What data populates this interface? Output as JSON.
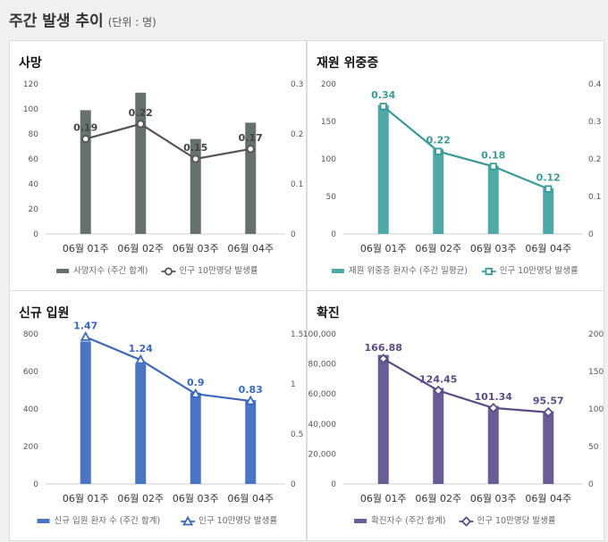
{
  "header": {
    "title": "주간 발생 추이",
    "unit": "(단위 : 명)"
  },
  "chart_data": [
    {
      "id": "death",
      "type": "bar",
      "title": "사망",
      "categories": [
        "06월 01주",
        "06월 02주",
        "06월 03주",
        "06월 04주"
      ],
      "color": "#66706d",
      "line_color": "#555555",
      "marker": "circle",
      "ylim_left": [
        0,
        120
      ],
      "yticks_left": [
        "0",
        "20",
        "40",
        "60",
        "80",
        "100",
        "120"
      ],
      "ylim_right": [
        0,
        0.3
      ],
      "yticks_right": [
        "0",
        "0.1",
        "0.2",
        "0.3"
      ],
      "series": [
        {
          "name": "사망자수 (주간 합계)",
          "kind": "bar",
          "axis": "left",
          "values": [
            99,
            113,
            76,
            89
          ]
        },
        {
          "name": "인구 10만명당 발생률",
          "kind": "line",
          "axis": "right",
          "values": [
            0.19,
            0.22,
            0.15,
            0.17
          ],
          "labels": [
            "0.19",
            "0.22",
            "0.15",
            "0.17"
          ]
        }
      ]
    },
    {
      "id": "severe",
      "type": "bar",
      "title": "재원 위중증",
      "categories": [
        "06월 01주",
        "06월 02주",
        "06월 03주",
        "06월 04주"
      ],
      "color": "#4fa9a6",
      "line_color": "#3a9a97",
      "marker": "square",
      "ylim_left": [
        0,
        200
      ],
      "yticks_left": [
        "0",
        "50",
        "100",
        "150",
        "200"
      ],
      "ylim_right": [
        0,
        0.4
      ],
      "yticks_right": [
        "0",
        "0.1",
        "0.2",
        "0.3",
        "0.4"
      ],
      "series": [
        {
          "name": "재원 위중증 환자수 (주간 일평균)",
          "kind": "bar",
          "axis": "left",
          "values": [
            172,
            113,
            91,
            61
          ]
        },
        {
          "name": "인구 10만명당 발생률",
          "kind": "line",
          "axis": "right",
          "values": [
            0.34,
            0.22,
            0.18,
            0.12
          ],
          "labels": [
            "0.34",
            "0.22",
            "0.18",
            "0.12"
          ]
        }
      ]
    },
    {
      "id": "admission",
      "type": "bar",
      "title": "신규 입원",
      "categories": [
        "06월 01주",
        "06월 02주",
        "06월 03주",
        "06월 04주"
      ],
      "color": "#4a75c4",
      "line_color": "#3d68b8",
      "marker": "triangle",
      "ylim_left": [
        0,
        800
      ],
      "yticks_left": [
        "0",
        "200",
        "400",
        "600",
        "800"
      ],
      "ylim_right": [
        0,
        1.5
      ],
      "yticks_right": [
        "0",
        "0.5",
        "1",
        "1.5"
      ],
      "series": [
        {
          "name": "신규 입원 환자 수 (주간 합계)",
          "kind": "bar",
          "axis": "left",
          "values": [
            760,
            640,
            487,
            447
          ]
        },
        {
          "name": "인구 10만명당 발생률",
          "kind": "line",
          "axis": "right",
          "values": [
            1.47,
            1.24,
            0.9,
            0.83
          ],
          "labels": [
            "1.47",
            "1.24",
            "0.9",
            "0.83"
          ]
        }
      ]
    },
    {
      "id": "confirmed",
      "type": "bar",
      "title": "확진",
      "categories": [
        "06월 01주",
        "06월 02주",
        "06월 03주",
        "06월 04주"
      ],
      "color": "#6a5c94",
      "line_color": "#5a4d86",
      "marker": "diamond",
      "ylim_left": [
        0,
        100000
      ],
      "yticks_left": [
        "0",
        "20,000",
        "40,000",
        "60,000",
        "80,000",
        "100,000"
      ],
      "ylim_right": [
        0,
        200
      ],
      "yticks_right": [
        "0",
        "50",
        "100",
        "150",
        "200"
      ],
      "series": [
        {
          "name": "확진자수 (주간 합계)",
          "kind": "bar",
          "axis": "left",
          "values": [
            86000,
            64000,
            52000,
            48500
          ]
        },
        {
          "name": "인구 10만명당 발생률",
          "kind": "line",
          "axis": "right",
          "values": [
            166.88,
            124.45,
            101.34,
            95.57
          ],
          "labels": [
            "166.88",
            "124.45",
            "101.34",
            "95.57"
          ]
        }
      ]
    }
  ]
}
